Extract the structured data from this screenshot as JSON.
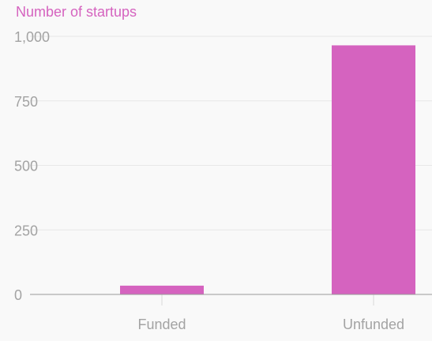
{
  "chart_data": {
    "type": "bar",
    "ylabel": "Number of startups",
    "categories": [
      "Funded",
      "Unfunded"
    ],
    "values": [
      34,
      965
    ],
    "ylim": [
      0,
      1000
    ],
    "yticks": [
      0,
      250,
      500,
      750,
      1000
    ],
    "ytick_labels": [
      "0",
      "250",
      "500",
      "750",
      "1,000"
    ],
    "grid": true,
    "colors": {
      "bar": "#d563bf",
      "ylabel": "#d563bf",
      "grid": "#e8e8e8",
      "axis": "#999999",
      "tick_text": "#a3a3a3",
      "background": "#f9f9f9"
    }
  }
}
